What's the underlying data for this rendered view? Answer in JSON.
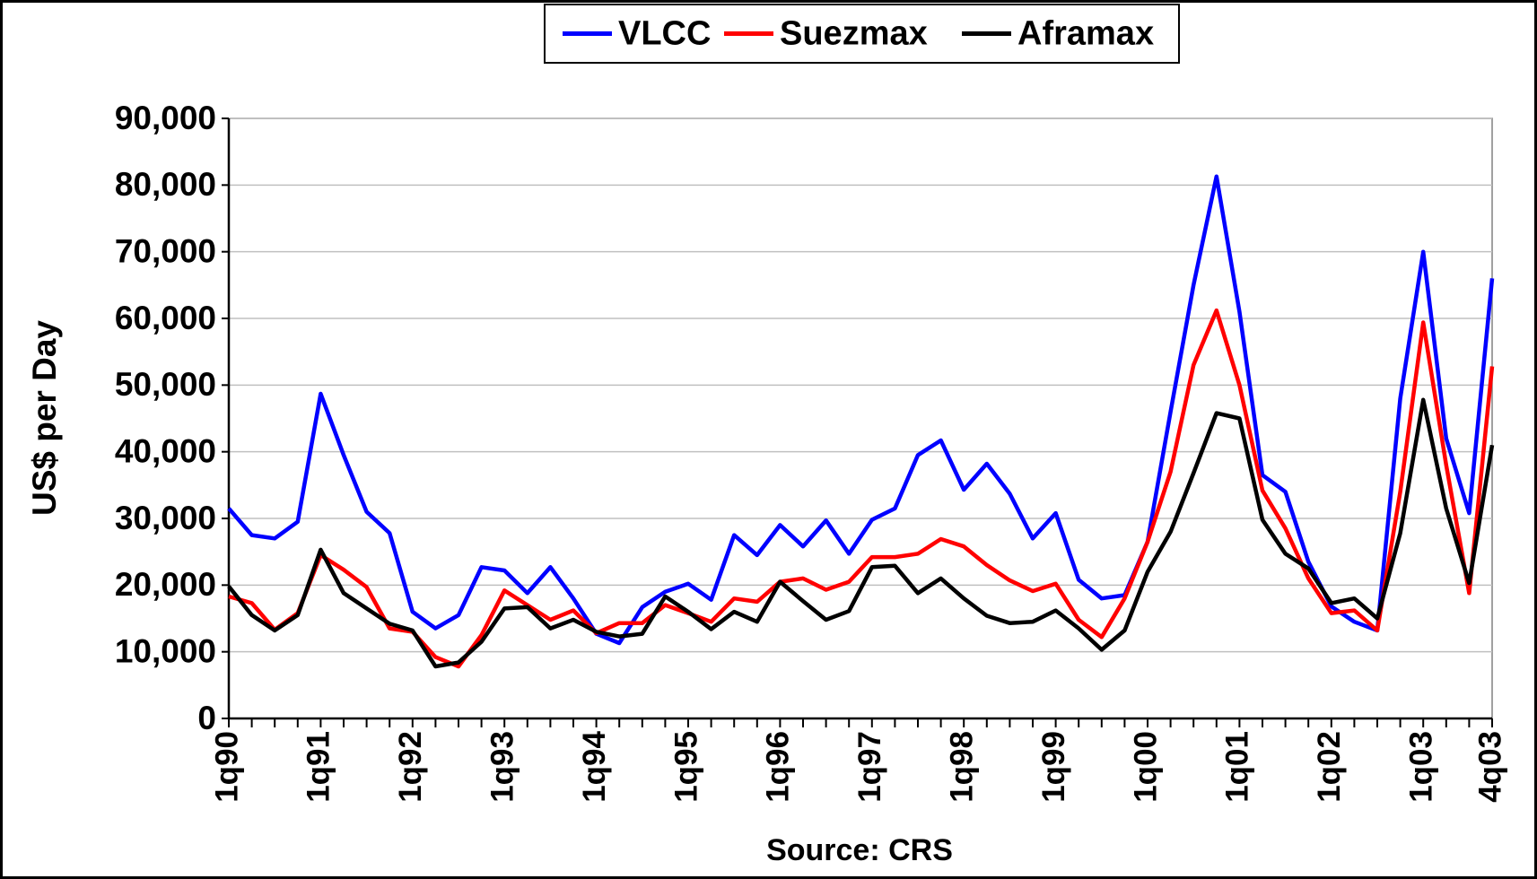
{
  "chart_data": {
    "type": "line",
    "y_label": "US$ per Day",
    "source": "Source: CRS",
    "categories": [
      "1q90",
      null,
      null,
      null,
      "1q91",
      null,
      null,
      null,
      "1q92",
      null,
      null,
      null,
      "1q93",
      null,
      null,
      null,
      "1q94",
      null,
      null,
      null,
      "1q95",
      null,
      null,
      null,
      "1q96",
      null,
      null,
      null,
      "1q97",
      null,
      null,
      null,
      "1q98",
      null,
      null,
      null,
      "1q99",
      null,
      null,
      null,
      "1q00",
      null,
      null,
      null,
      "1q01",
      null,
      null,
      null,
      "1q02",
      null,
      null,
      null,
      "1q03",
      null,
      null,
      "4q03"
    ],
    "series": [
      {
        "name": "VLCC",
        "color": "#0000ff",
        "values": [
          31500,
          27500,
          27000,
          29500,
          48700,
          39500,
          31000,
          27800,
          16000,
          13500,
          15500,
          22700,
          22200,
          18800,
          22700,
          18000,
          12700,
          11300,
          16700,
          19000,
          20200,
          17800,
          27500,
          24500,
          29000,
          25800,
          29700,
          24700,
          29800,
          31500,
          39500,
          41700,
          34300,
          38200,
          33700,
          27000,
          30800,
          20800,
          18000,
          18500,
          26500,
          46000,
          65000,
          81300,
          61000,
          36500,
          34000,
          23500,
          16800,
          14500,
          13200,
          48000,
          70000,
          42000,
          30800,
          66000
        ]
      },
      {
        "name": "Suezmax",
        "color": "#ff0000",
        "values": [
          18300,
          17300,
          13300,
          15800,
          24500,
          22300,
          19700,
          13500,
          13000,
          9200,
          7800,
          12500,
          19200,
          17000,
          14800,
          16200,
          12800,
          14300,
          14300,
          17000,
          15800,
          14500,
          18000,
          17500,
          20500,
          21000,
          19300,
          20500,
          24200,
          24200,
          24700,
          26900,
          25800,
          23000,
          20700,
          19100,
          20200,
          14800,
          12200,
          18000,
          26500,
          37000,
          53000,
          61200,
          50000,
          34200,
          28500,
          21000,
          15800,
          16200,
          13200,
          34000,
          59400,
          38000,
          18800,
          52800
        ]
      },
      {
        "name": "Aframax",
        "color": "#000000",
        "values": [
          19800,
          15500,
          13200,
          15500,
          25300,
          18800,
          16500,
          14200,
          13200,
          7800,
          8400,
          11500,
          16500,
          16700,
          13500,
          14800,
          13000,
          12300,
          12700,
          18300,
          16000,
          13400,
          16000,
          14500,
          20500,
          17600,
          14800,
          16100,
          22700,
          22900,
          18800,
          21000,
          18000,
          15400,
          14300,
          14500,
          16200,
          13500,
          10300,
          13200,
          22000,
          28000,
          36800,
          45800,
          45000,
          29800,
          24700,
          22500,
          17300,
          18000,
          15000,
          27800,
          47800,
          31500,
          20300,
          41000
        ]
      }
    ],
    "ylim": [
      0,
      90000
    ],
    "yticks": [
      0,
      {
        "value": 10000,
        "label": "10,000"
      },
      {
        "value": 20000,
        "label": "20,000"
      },
      {
        "value": 30000,
        "label": "30,000"
      },
      {
        "value": 40000,
        "label": "40,000"
      },
      {
        "value": 50000,
        "label": "50,000"
      },
      {
        "value": 60000,
        "label": "60,000"
      },
      {
        "value": 70000,
        "label": "70,000"
      },
      {
        "value": 80000,
        "label": "80,000"
      },
      {
        "value": 90000,
        "label": "90,000"
      }
    ],
    "grid": true,
    "legend": "top"
  }
}
